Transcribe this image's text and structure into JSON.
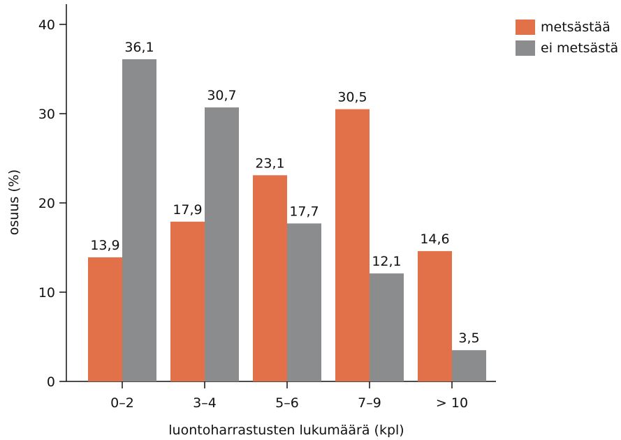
{
  "chart_data": {
    "type": "bar",
    "title": "",
    "xlabel": "luontoharrastusten lukumäärä (kpl)",
    "ylabel": "osuus (%)",
    "ylim": [
      0,
      40
    ],
    "yticks": [
      "0",
      "10",
      "20",
      "30",
      "40"
    ],
    "categories": [
      "0–2",
      "3–4",
      "5–6",
      "7–9",
      "> 10"
    ],
    "series": [
      {
        "name": "metsästää",
        "color": "#e2714a",
        "values": [
          13.9,
          17.9,
          23.1,
          30.5,
          14.6
        ],
        "labels": [
          "13,9",
          "17,9",
          "23,1",
          "30,5",
          "14,6"
        ]
      },
      {
        "name": "ei metsästä",
        "color": "#8b8c8e",
        "values": [
          36.1,
          30.7,
          17.7,
          12.1,
          3.5
        ],
        "labels": [
          "36,1",
          "30,7",
          "17,7",
          "12,1",
          "3,5"
        ]
      }
    ],
    "legend_position": "top-right",
    "grid": false
  }
}
